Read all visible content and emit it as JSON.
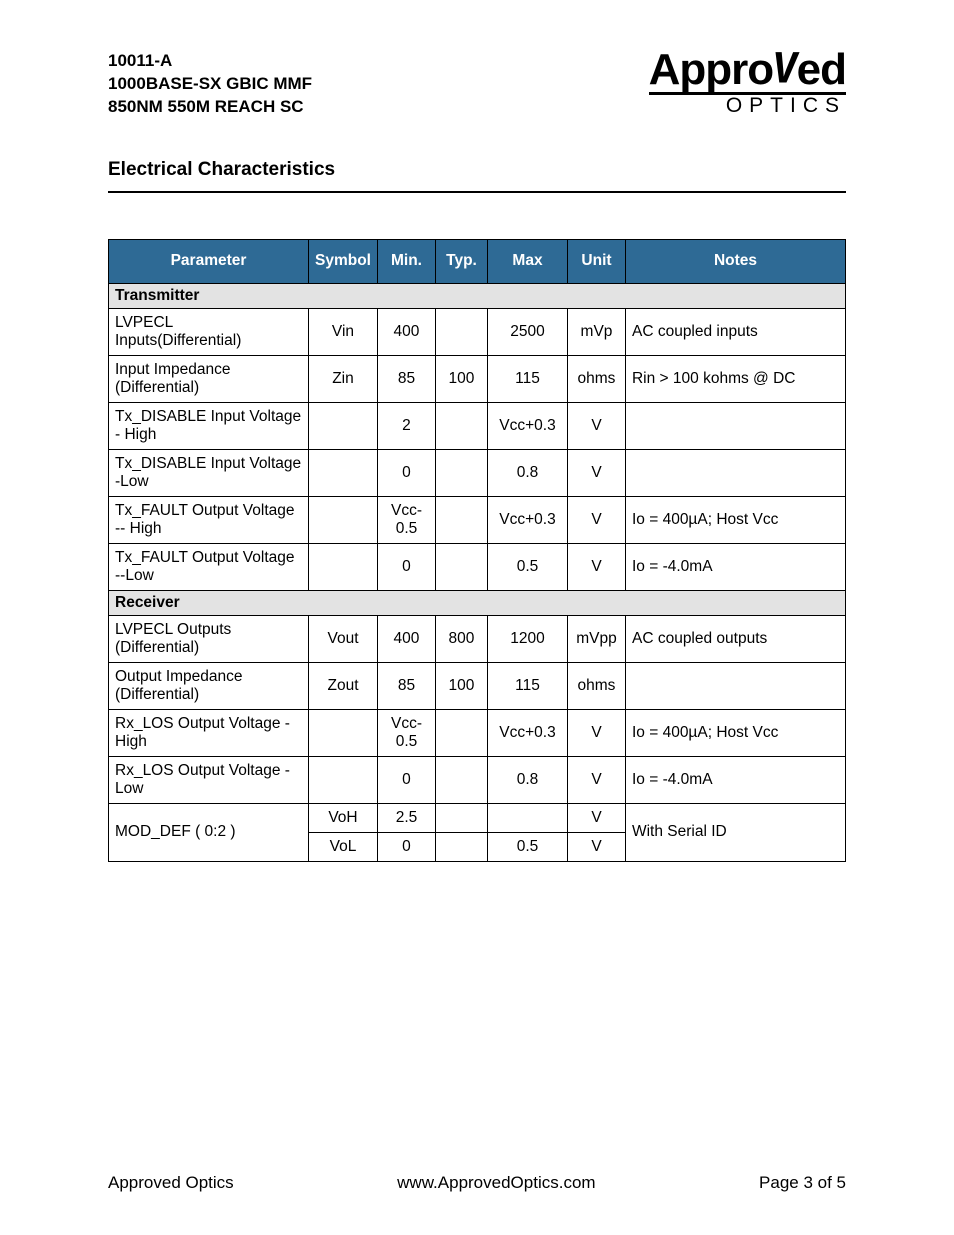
{
  "header": {
    "line1": "10011-A",
    "line2": "1000BASE-SX GBIC MMF",
    "line3": "850NM 550M REACH SC"
  },
  "logo": {
    "top": "Approved",
    "bottom": "OPTICS"
  },
  "section_title": "Electrical Characteristics",
  "table": {
    "columns": [
      "Parameter",
      "Symbol",
      "Min.",
      "Typ.",
      "Max",
      "Unit",
      "Notes"
    ],
    "groups": [
      {
        "label": "Transmitter",
        "rows": [
          {
            "param": "LVPECL Inputs(Differential)",
            "symbol": "Vin",
            "min": "400",
            "typ": "",
            "max": "2500",
            "unit": "mVp",
            "notes": "AC coupled inputs"
          },
          {
            "param": "Input Impedance (Differential)",
            "symbol": "Zin",
            "min": "85",
            "typ": "100",
            "max": "115",
            "unit": "ohms",
            "notes": "Rin > 100 kohms @ DC"
          },
          {
            "param": "Tx_DISABLE Input Voltage - High",
            "symbol": "",
            "min": "2",
            "typ": "",
            "max": "Vcc+0.3",
            "unit": "V",
            "notes": ""
          },
          {
            "param": "Tx_DISABLE Input Voltage -Low",
            "symbol": "",
            "min": "0",
            "typ": "",
            "max": "0.8",
            "unit": "V",
            "notes": ""
          },
          {
            "param": "Tx_FAULT Output Voltage -- High",
            "symbol": "",
            "min": "Vcc-0.5",
            "typ": "",
            "max": "Vcc+0.3",
            "unit": "V",
            "notes": "Io = 400µA; Host Vcc"
          },
          {
            "param": "Tx_FAULT Output Voltage --Low",
            "symbol": "",
            "min": "0",
            "typ": "",
            "max": "0.5",
            "unit": "V",
            "notes": "Io = -4.0mA"
          }
        ]
      },
      {
        "label": "Receiver",
        "rows": [
          {
            "param": "LVPECL Outputs (Differential)",
            "symbol": "Vout",
            "min": "400",
            "typ": "800",
            "max": "1200",
            "unit": "mVpp",
            "notes": "AC coupled outputs"
          },
          {
            "param": "Output Impedance (Differential)",
            "symbol": "Zout",
            "min": "85",
            "typ": "100",
            "max": "115",
            "unit": "ohms",
            "notes": ""
          },
          {
            "param": "Rx_LOS Output Voltage - High",
            "symbol": "",
            "min": "Vcc-0.5",
            "typ": "",
            "max": "Vcc+0.3",
            "unit": "V",
            "notes": "Io = 400µA; Host Vcc"
          },
          {
            "param": "Rx_LOS Output Voltage -Low",
            "symbol": "",
            "min": "0",
            "typ": "",
            "max": "0.8",
            "unit": "V",
            "notes": "Io = -4.0mA"
          }
        ]
      }
    ],
    "mod_def": {
      "param": "MOD_DEF ( 0:2 )",
      "rows": [
        {
          "symbol": "VoH",
          "min": "2.5",
          "typ": "",
          "max": "",
          "unit": "V"
        },
        {
          "symbol": "VoL",
          "min": "0",
          "typ": "",
          "max": "0.5",
          "unit": "V"
        }
      ],
      "notes": "With Serial ID"
    }
  },
  "footer": {
    "left": "Approved Optics",
    "center": "www.ApprovedOptics.com",
    "right": "Page 3 of 5"
  },
  "colors": {
    "header_bg": "#2e6a95",
    "section_bg": "#e3e3e3"
  }
}
